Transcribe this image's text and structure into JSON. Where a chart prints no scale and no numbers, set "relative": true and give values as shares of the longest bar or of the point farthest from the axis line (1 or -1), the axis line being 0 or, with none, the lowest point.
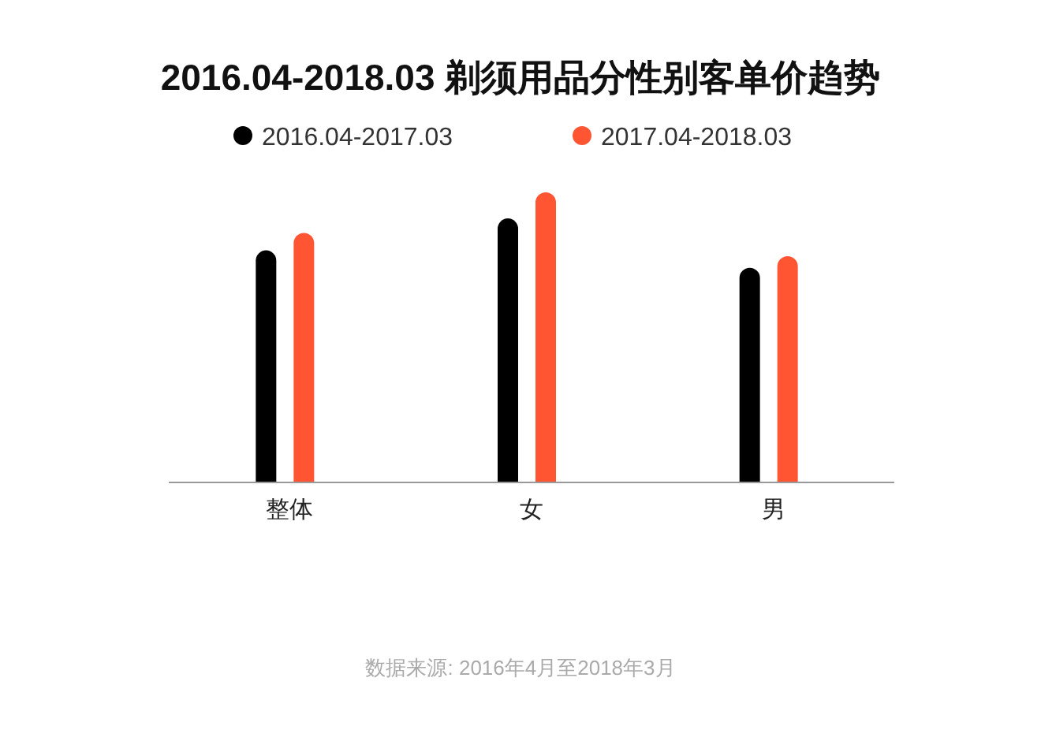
{
  "chart_data": {
    "type": "bar",
    "title": "2016.04-2018.03 剃须用品分性别客单价趋势",
    "relative": true,
    "categories": [
      "整体",
      "女",
      "男"
    ],
    "series": [
      {
        "name": "2016.04-2017.03",
        "color": "#000000",
        "values": [
          0.8,
          0.91,
          0.74
        ]
      },
      {
        "name": "2017.04-2018.03",
        "color": "#ff5533",
        "values": [
          0.86,
          1,
          0.78
        ]
      }
    ],
    "legend": "top",
    "annotations": [
      "数据来源: 2016年4月至2018年3月"
    ]
  }
}
